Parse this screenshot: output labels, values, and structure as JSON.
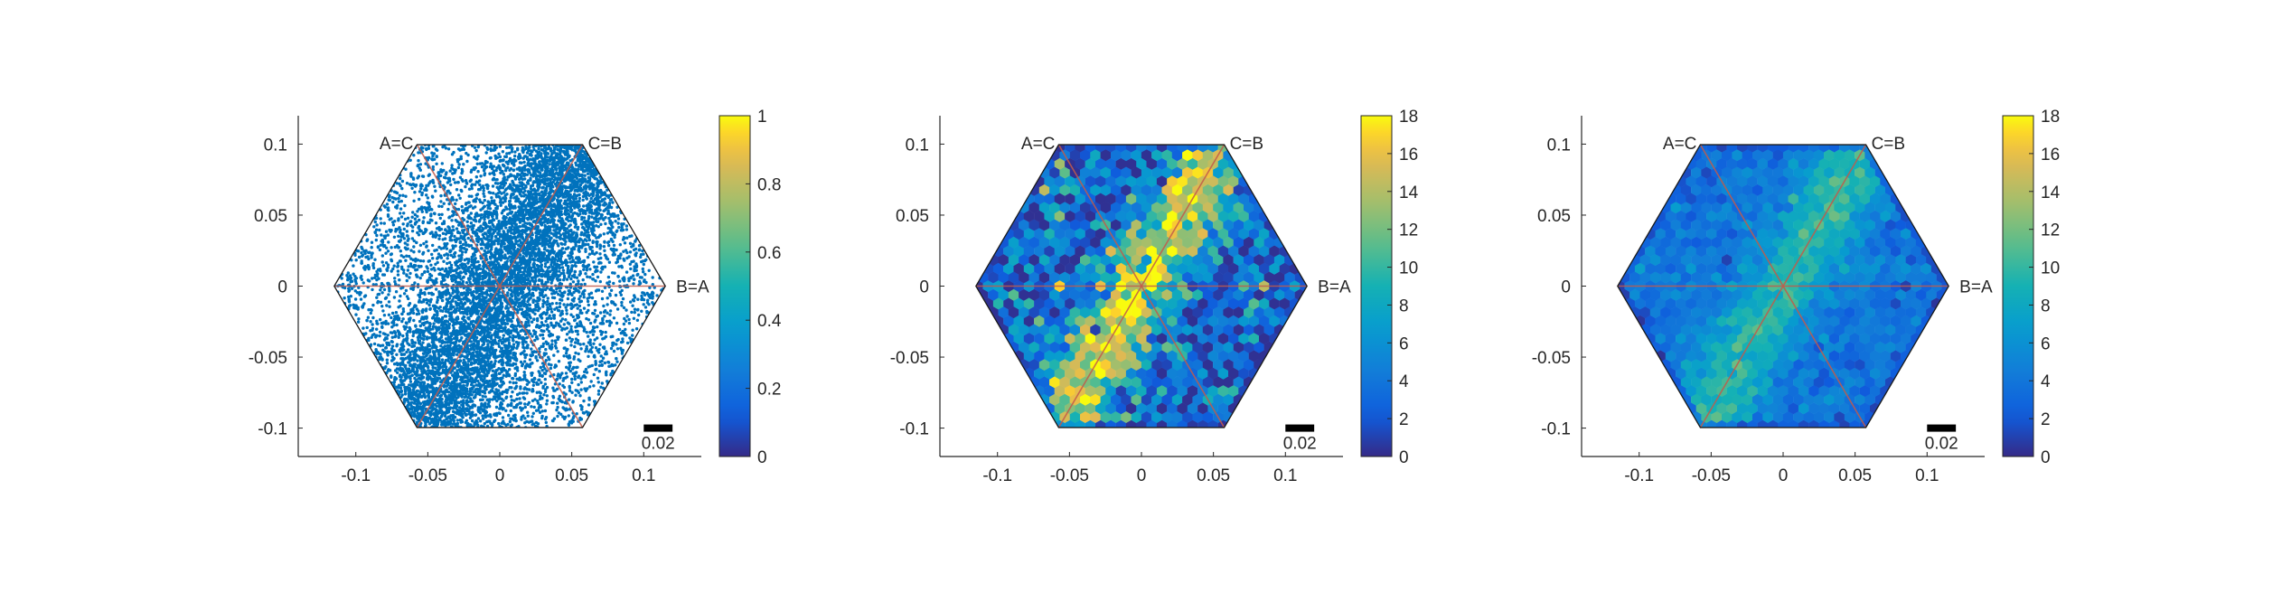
{
  "colors": {
    "axis": "#262626",
    "scatter_point": "#0072BD",
    "hex_outline": "#1a1a1a",
    "guide_line": "#c25a4a",
    "scale_bar": "#000000"
  },
  "colormap": "parula",
  "chart_data": [
    {
      "type": "scatter",
      "panel": 1,
      "xlim": [
        -0.14,
        0.14
      ],
      "ylim": [
        -0.12,
        0.12
      ],
      "xticks": [
        "-0.1",
        "-0.05",
        "0",
        "0.05",
        "0.1"
      ],
      "yticks": [
        "0.1",
        "0.05",
        "0",
        "-0.05",
        "-0.1"
      ],
      "xtick_values": [
        -0.1,
        -0.05,
        0,
        0.05,
        0.1
      ],
      "ytick_values": [
        0.1,
        0.05,
        0,
        -0.05,
        -0.1
      ],
      "vertex_labels": [
        "A=C",
        "C=B",
        "B=A"
      ],
      "scale_bar_label": "0.02",
      "scale_bar_length": 0.02,
      "colorbar": {
        "min": 0,
        "max": 1,
        "ticks": [
          "0",
          "0.2",
          "0.4",
          "0.6",
          "0.8",
          "1"
        ],
        "tick_values": [
          0,
          0.2,
          0.4,
          0.6,
          0.8,
          1
        ]
      },
      "point_count": 9000,
      "hexagon_radius": 0.115,
      "distribution": "dense band along the line from (-0.057,-0.1) to (0.057,0.1), sparser toward the corners"
    },
    {
      "type": "heatmap",
      "panel": 2,
      "xlim": [
        -0.14,
        0.14
      ],
      "ylim": [
        -0.12,
        0.12
      ],
      "xticks": [
        "-0.1",
        "-0.05",
        "0",
        "0.05",
        "0.1"
      ],
      "yticks": [
        "0.1",
        "0.05",
        "0",
        "-0.05",
        "-0.1"
      ],
      "xtick_values": [
        -0.1,
        -0.05,
        0,
        0.05,
        0.1
      ],
      "ytick_values": [
        0.1,
        0.05,
        0,
        -0.05,
        -0.1
      ],
      "vertex_labels": [
        "A=C",
        "C=B",
        "B=A"
      ],
      "scale_bar_label": "0.02",
      "scale_bar_length": 0.02,
      "colorbar": {
        "min": 0,
        "max": 18,
        "ticks": [
          "0",
          "2",
          "4",
          "6",
          "8",
          "10",
          "12",
          "14",
          "16",
          "18"
        ],
        "tick_values": [
          0,
          2,
          4,
          6,
          8,
          10,
          12,
          14,
          16,
          18
        ]
      },
      "hexagon_radius": 0.115,
      "background_count": 3.5,
      "peak_count": 15,
      "noise": 3.5,
      "distribution": "hex-binned counts, elevated along the C=B diagonal band, noisy"
    },
    {
      "type": "heatmap",
      "panel": 3,
      "xlim": [
        -0.14,
        0.14
      ],
      "ylim": [
        -0.12,
        0.12
      ],
      "xticks": [
        "-0.1",
        "-0.05",
        "0",
        "0.05",
        "0.1"
      ],
      "yticks": [
        "0.1",
        "0.05",
        "0",
        "-0.05",
        "-0.1"
      ],
      "xtick_values": [
        -0.1,
        -0.05,
        0,
        0.05,
        0.1
      ],
      "ytick_values": [
        0.1,
        0.05,
        0,
        -0.05,
        -0.1
      ],
      "vertex_labels": [
        "A=C",
        "C=B",
        "B=A"
      ],
      "scale_bar_label": "0.02",
      "scale_bar_length": 0.02,
      "colorbar": {
        "min": 0,
        "max": 18,
        "ticks": [
          "0",
          "2",
          "4",
          "6",
          "8",
          "10",
          "12",
          "14",
          "16",
          "18"
        ],
        "tick_values": [
          0,
          2,
          4,
          6,
          8,
          10,
          12,
          14,
          16,
          18
        ]
      },
      "hexagon_radius": 0.115,
      "background_count": 4,
      "peak_count": 10,
      "noise": 1.2,
      "distribution": "hex-binned counts, smoother, elevated along the C=B diagonal band"
    }
  ]
}
